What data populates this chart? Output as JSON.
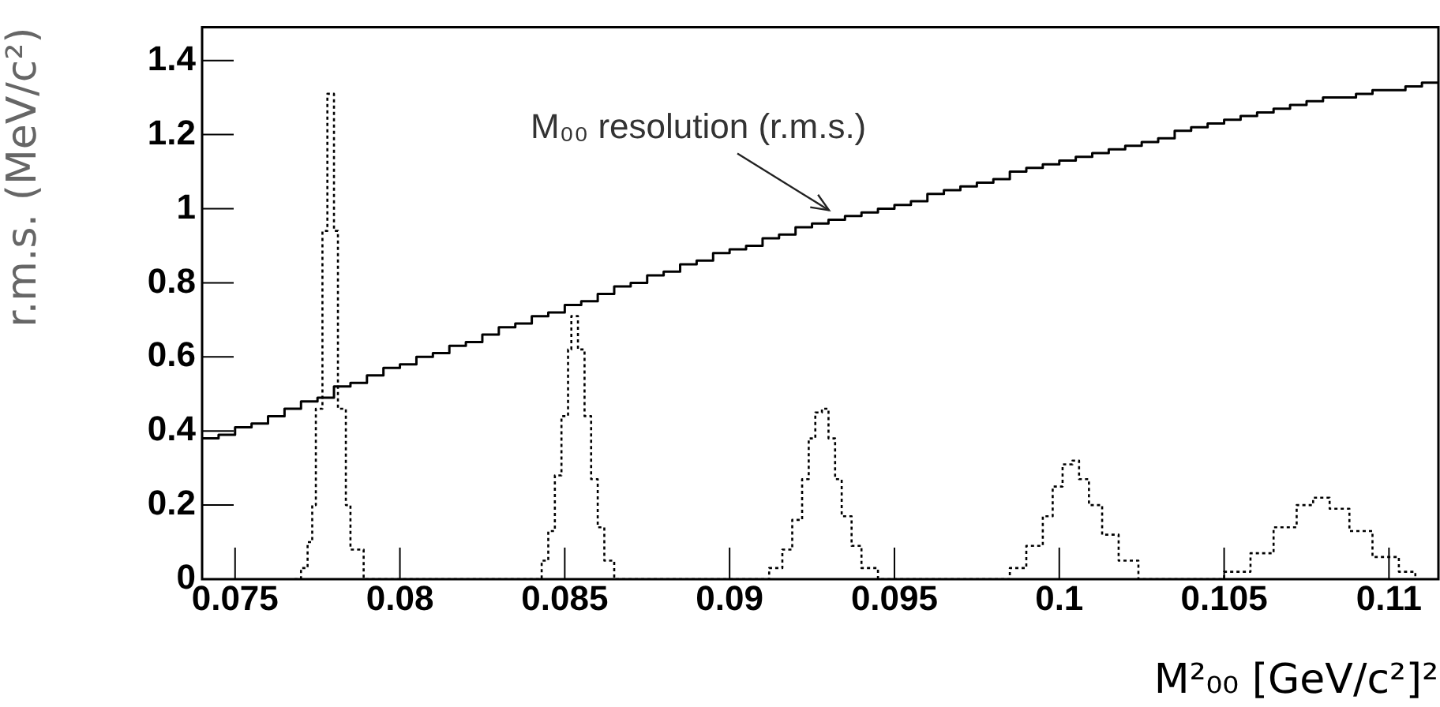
{
  "chart_data": {
    "type": "step",
    "xlabel": "M²₀₀ [GeV/c²]²",
    "ylabel": "r.m.s. (MeV/c²)",
    "xlim": [
      0.074,
      0.1115
    ],
    "ylim": [
      0,
      1.49
    ],
    "xticks": [
      0.075,
      0.08,
      0.085,
      0.09,
      0.095,
      0.1,
      0.105,
      0.11
    ],
    "yticks": [
      0,
      0.2,
      0.4,
      0.6,
      0.8,
      1,
      1.2,
      1.4
    ],
    "grid": false,
    "legend": false,
    "marker": "none",
    "annotations": [
      "M₀₀ resolution (r.m.s.)"
    ],
    "series": [
      {
        "color": "#000000",
        "line_style": "solid",
        "x": [
          0.074,
          0.0745,
          0.075,
          0.0755,
          0.076,
          0.0765,
          0.077,
          0.0775,
          0.078,
          0.0785,
          0.079,
          0.0795,
          0.08,
          0.0805,
          0.081,
          0.0815,
          0.082,
          0.0825,
          0.083,
          0.0835,
          0.084,
          0.0845,
          0.085,
          0.0855,
          0.086,
          0.0865,
          0.087,
          0.0875,
          0.088,
          0.0885,
          0.089,
          0.0895,
          0.09,
          0.0905,
          0.091,
          0.0915,
          0.092,
          0.0925,
          0.093,
          0.0935,
          0.094,
          0.0945,
          0.095,
          0.0955,
          0.096,
          0.0965,
          0.097,
          0.0975,
          0.098,
          0.0985,
          0.099,
          0.0995,
          0.1,
          0.1005,
          0.101,
          0.1015,
          0.102,
          0.1025,
          0.103,
          0.1035,
          0.104,
          0.1045,
          0.105,
          0.1055,
          0.106,
          0.1065,
          0.107,
          0.1075,
          0.108,
          0.1085,
          0.109,
          0.1095,
          0.11,
          0.1105,
          0.111,
          0.1115
        ],
        "values": [
          0.38,
          0.39,
          0.41,
          0.42,
          0.44,
          0.46,
          0.48,
          0.49,
          0.52,
          0.53,
          0.55,
          0.57,
          0.58,
          0.6,
          0.61,
          0.63,
          0.64,
          0.66,
          0.68,
          0.69,
          0.71,
          0.72,
          0.74,
          0.75,
          0.77,
          0.79,
          0.8,
          0.82,
          0.83,
          0.85,
          0.86,
          0.88,
          0.89,
          0.9,
          0.92,
          0.93,
          0.95,
          0.96,
          0.97,
          0.98,
          0.99,
          1.0,
          1.01,
          1.02,
          1.04,
          1.05,
          1.06,
          1.07,
          1.08,
          1.1,
          1.11,
          1.12,
          1.13,
          1.14,
          1.15,
          1.16,
          1.17,
          1.18,
          1.19,
          1.21,
          1.22,
          1.23,
          1.24,
          1.25,
          1.26,
          1.27,
          1.28,
          1.29,
          1.3,
          1.3,
          1.31,
          1.32,
          1.32,
          1.33,
          1.34,
          1.34
        ]
      },
      {
        "color": "#000000",
        "line_style": "dotted",
        "x": [
          0.0768,
          0.077,
          0.0772,
          0.07734,
          0.07745,
          0.07765,
          0.0778,
          0.078,
          0.07812,
          0.07836,
          0.0785,
          0.0789,
          0.084,
          0.0843,
          0.0845,
          0.0847,
          0.0849,
          0.0851,
          0.0852,
          0.0854,
          0.0856,
          0.0858,
          0.086,
          0.0862,
          0.0865,
          0.0908,
          0.0912,
          0.0916,
          0.0919,
          0.0922,
          0.0924,
          0.0926,
          0.0928,
          0.093,
          0.0932,
          0.0934,
          0.0937,
          0.094,
          0.0945,
          0.098,
          0.0985,
          0.099,
          0.0995,
          0.0998,
          0.1001,
          0.1004,
          0.1006,
          0.1009,
          0.1013,
          0.1018,
          0.1024,
          0.1045,
          0.105,
          0.1058,
          0.1065,
          0.1072,
          0.1077,
          0.1082,
          0.1088,
          0.1095,
          0.1103,
          0.1108
        ],
        "values": [
          0,
          0.03,
          0.1,
          0.2,
          0.46,
          0.94,
          1.31,
          0.94,
          0.46,
          0.2,
          0.08,
          0,
          0,
          0.05,
          0.13,
          0.28,
          0.44,
          0.62,
          0.71,
          0.62,
          0.44,
          0.27,
          0.14,
          0.05,
          0,
          0,
          0.03,
          0.08,
          0.16,
          0.27,
          0.38,
          0.45,
          0.46,
          0.38,
          0.27,
          0.17,
          0.09,
          0.03,
          0,
          0,
          0.03,
          0.09,
          0.17,
          0.25,
          0.31,
          0.32,
          0.27,
          0.2,
          0.12,
          0.05,
          0,
          0,
          0.02,
          0.07,
          0.14,
          0.2,
          0.22,
          0.19,
          0.13,
          0.06,
          0.02,
          0
        ]
      }
    ]
  }
}
